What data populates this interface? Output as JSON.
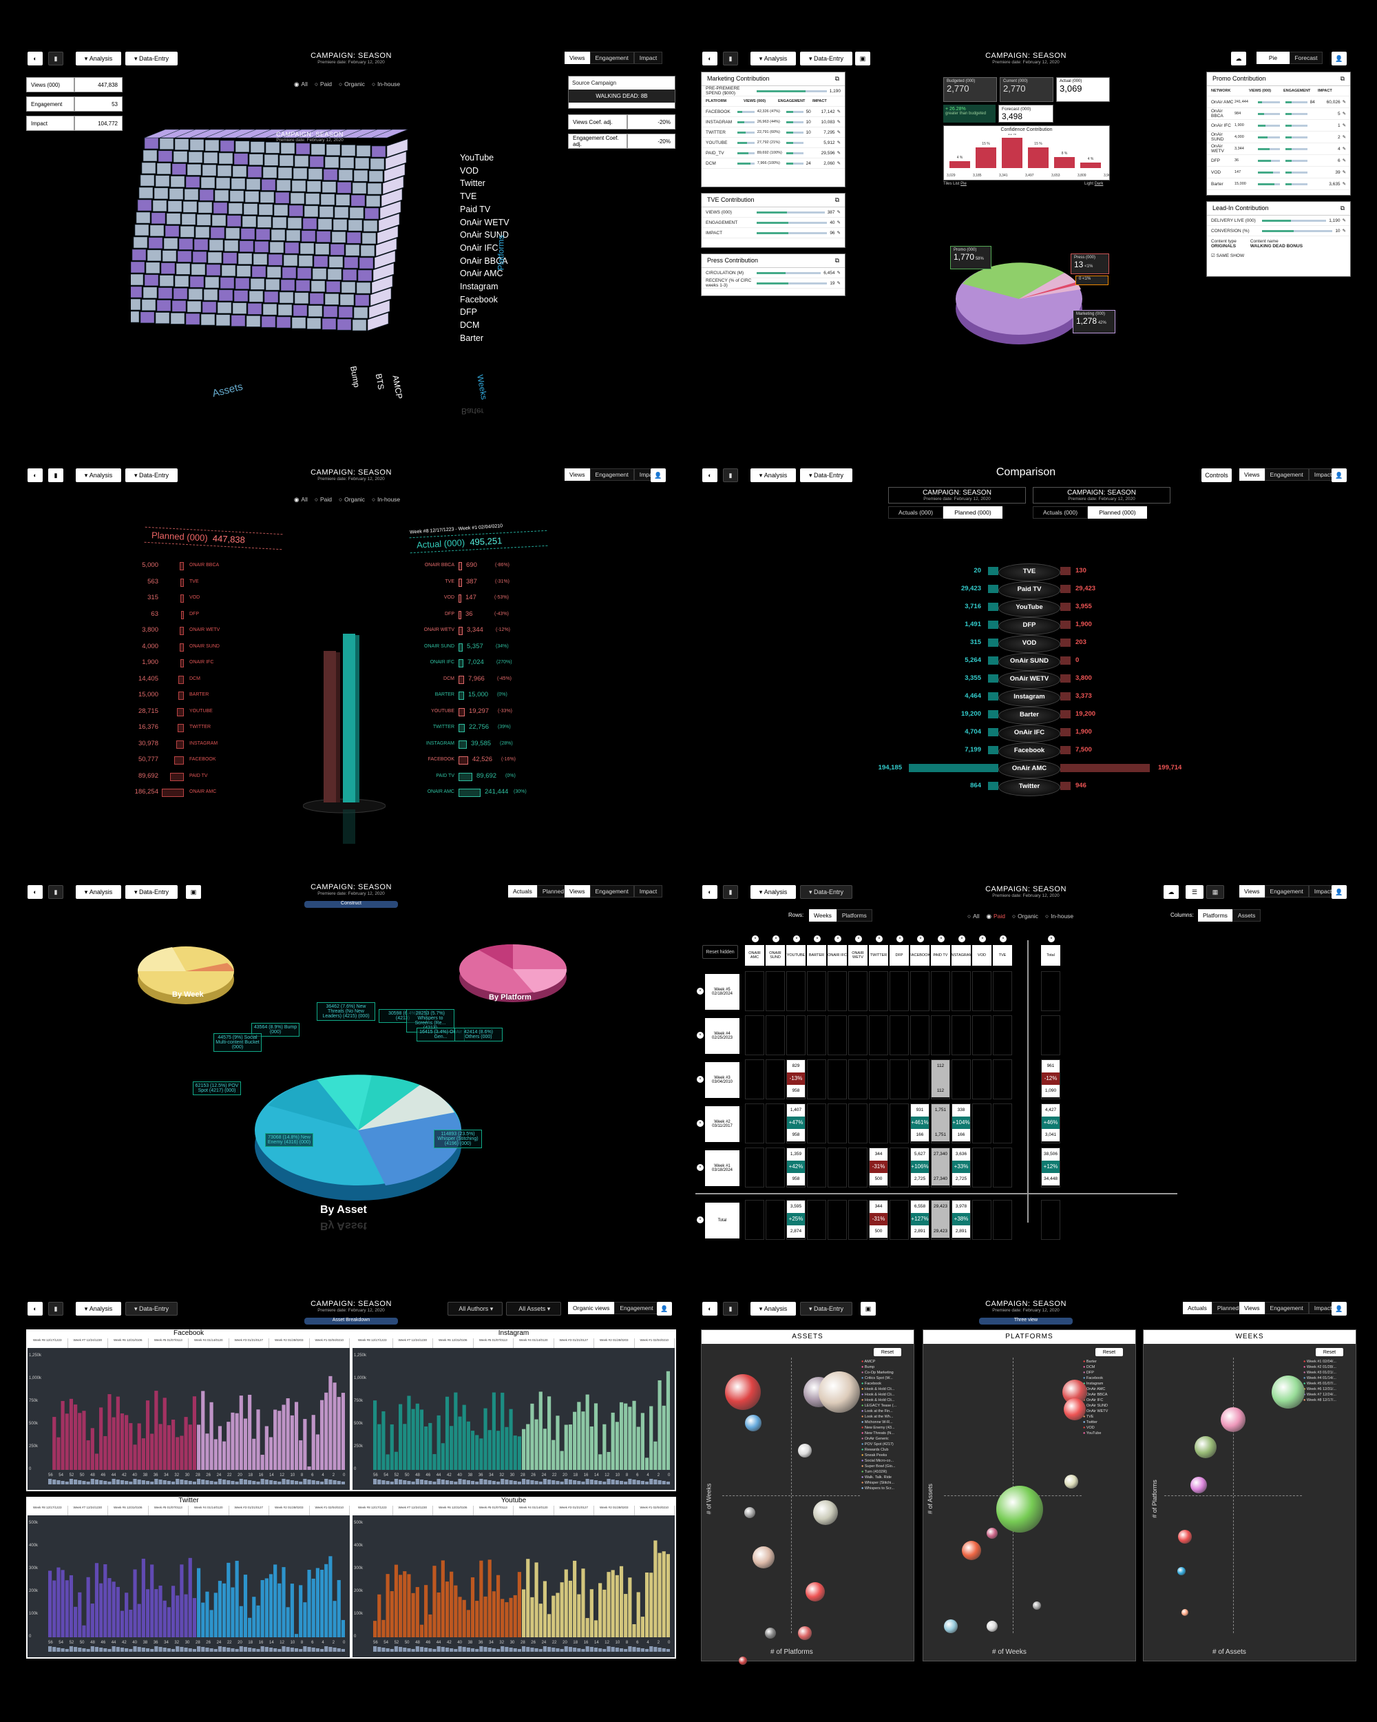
{
  "common": {
    "analysis": "Analysis",
    "data_entry": "Data-Entry",
    "campaign": "CAMPAIGN: SEASON",
    "premiere": "Premiere date: February 12, 2020",
    "views": "Views",
    "engagement": "Engagement",
    "impact": "Impact",
    "actuals": "Actuals",
    "planned": "Planned",
    "controls": "Controls"
  },
  "p1": {
    "filters": [
      "All",
      "Paid",
      "Organic",
      "In-house"
    ],
    "metrics": [
      {
        "k": "Views (000)",
        "v": "447,838"
      },
      {
        "k": "Engagement",
        "v": "53"
      },
      {
        "k": "Impact",
        "v": "104,772"
      }
    ],
    "source_label": "Source Campaign",
    "source_value": "WALKING DEAD: 8B",
    "coefs": [
      {
        "k": "Views Coef. adj.",
        "v": "-20%"
      },
      {
        "k": "Engagement Coef. adj.",
        "v": "-20%"
      }
    ],
    "platforms": [
      "YouTube",
      "VOD",
      "Twitter",
      "TVE",
      "Paid TV",
      "OnAir WETV",
      "OnAir SUND",
      "OnAir IFC",
      "OnAir BBCA",
      "OnAir AMC",
      "Instagram",
      "Facebook",
      "DFP",
      "DCM",
      "Barter"
    ],
    "axis_platforms": "Platforms",
    "axis_assets": "Assets",
    "axis_weeks": "Weeks",
    "bump": "Bump",
    "bts": "BTS",
    "amcp": "AMCP",
    "mirror": "Barter"
  },
  "p2": {
    "tabs": [
      "Pie",
      "Forecast"
    ],
    "marketing": {
      "title": "Marketing Contribution",
      "pre": "PRE-PREMIERE SPEND ($000)",
      "pre_v": "1,190",
      "cols": [
        "PLATFORM",
        "VIEWS (000)",
        "ENGAGEMENT",
        "IMPACT"
      ],
      "rows": [
        [
          "FACEBOOK",
          "42,326 (47%)",
          "50",
          "17,142"
        ],
        [
          "INSTAGRAM",
          "26,963 (44%)",
          "10",
          "10,083"
        ],
        [
          "TWITTER",
          "22,791 (60%)",
          "10",
          "7,295"
        ],
        [
          "YOUTUBE",
          "27,792 (21%)",
          "",
          "5,912"
        ],
        [
          "PAID_TV",
          "89,692 (100%)",
          "",
          "29,596"
        ],
        [
          "DCM",
          "7,966 (100%)",
          "24",
          "2,060"
        ]
      ]
    },
    "tve": {
      "title": "TVE Contribution",
      "rows": [
        [
          "VIEWS (000)",
          "387"
        ],
        [
          "ENGAGEMENT",
          "40"
        ],
        [
          "IMPACT",
          "96"
        ]
      ]
    },
    "press": {
      "title": "Press Contribution",
      "rows": [
        [
          "CIRCULATION (M)",
          "6,454"
        ],
        [
          "RECENCY (% of CIRC weeks 1-3)",
          "19"
        ]
      ]
    },
    "summary": [
      {
        "k": "Budgeted (000)",
        "v": "2,770"
      },
      {
        "k": "Current (000)",
        "v": "2,770"
      },
      {
        "k": "Actual (000)",
        "v": "3,069"
      }
    ],
    "delta": "+ 26.28%",
    "delta_sub": "greater than budgeted",
    "forecast_k": "Forecast (000)",
    "forecast_v": "3,498",
    "confidence": {
      "title": "Confidence Contribution",
      "pct": [
        "4 %",
        "15 %",
        "21 %",
        "15 %",
        "8 %",
        "4 %"
      ],
      "vals": [
        "3,029",
        "3,185",
        "3,341",
        "3,497",
        "3,653",
        "3,809",
        "3,965"
      ],
      "left": [
        "Tiles",
        "List",
        "Pie"
      ],
      "right": [
        "Light",
        "Dark"
      ]
    },
    "pie": [
      {
        "name": "Promo (000)",
        "value": "1,770",
        "pct": "58%"
      },
      {
        "name": "Press (000)",
        "value": "13",
        "pct": "<1%"
      },
      {
        "name": "Marketing (000)",
        "value": "1,278",
        "pct": "42%"
      },
      {
        "name": "",
        "value": "0",
        "pct": "<1%"
      }
    ],
    "promo": {
      "title": "Promo Contribution",
      "cols": [
        "NETWORK",
        "VIEWS (000)",
        "ENGAGEMENT",
        "IMPACT"
      ],
      "rows": [
        [
          "OnAir AMC",
          "241,444",
          "84",
          "60,026"
        ],
        [
          "OnAir BBCA",
          "984",
          "",
          "5"
        ],
        [
          "OnAir IFC",
          "1,900",
          "",
          "1"
        ],
        [
          "OnAir SUND",
          "4,000",
          "",
          "2"
        ],
        [
          "OnAir WETV",
          "3,344",
          "",
          "4"
        ],
        [
          "DFP",
          "36",
          "",
          "6"
        ],
        [
          "VOD",
          "147",
          "",
          "39"
        ],
        [
          "Barter",
          "15,000",
          "",
          "3,635"
        ]
      ]
    },
    "leadin": {
      "title": "Lead-In Contribution",
      "rows": [
        [
          "DELIVERY LIVE (000)",
          "1,190"
        ],
        [
          "CONVERSION (%)",
          "10"
        ]
      ],
      "ctype_k": "Content type",
      "ctype": "ORIGINALS",
      "cname_k": "Content name",
      "cname": "WALKING DEAD BONUS",
      "check": "SAME SHOW"
    }
  },
  "p3": {
    "filters": [
      "All",
      "Paid",
      "Organic",
      "In-house"
    ],
    "planned_label": "Planned (000)",
    "planned_total": "447,838",
    "actual_label": "Actual (000)",
    "actual_total": "495,251",
    "weeks": "Week #8 12/17/1223 - Week #1 02/04/0210",
    "left": [
      [
        "5,000",
        "ONAIR BBCA"
      ],
      [
        "563",
        "TVE"
      ],
      [
        "315",
        "VOD"
      ],
      [
        "63",
        "DFP"
      ],
      [
        "3,800",
        "ONAIR WETV"
      ],
      [
        "4,000",
        "ONAIR SUND"
      ],
      [
        "1,900",
        "ONAIR IFC"
      ],
      [
        "14,405",
        "DCM"
      ],
      [
        "15,000",
        "BARTER"
      ],
      [
        "28,715",
        "YOUTUBE"
      ],
      [
        "16,376",
        "TWITTER"
      ],
      [
        "30,978",
        "INSTAGRAM"
      ],
      [
        "50,777",
        "FACEBOOK"
      ],
      [
        "89,692",
        "PAID TV"
      ],
      [
        "186,254",
        "ONAIR AMC"
      ]
    ],
    "right": [
      [
        "ONAIR BBCA",
        "690",
        "(-86%)",
        "r"
      ],
      [
        "TVE",
        "387",
        "(-31%)",
        "r"
      ],
      [
        "VOD",
        "147",
        "(-53%)",
        "r"
      ],
      [
        "DFP",
        "36",
        "(-43%)",
        "r"
      ],
      [
        "ONAIR WETV",
        "3,344",
        "(-12%)",
        "r"
      ],
      [
        "ONAIR SUND",
        "5,357",
        "(34%)",
        "g"
      ],
      [
        "ONAIR IFC",
        "7,024",
        "(270%)",
        "g"
      ],
      [
        "DCM",
        "7,966",
        "(-45%)",
        "r"
      ],
      [
        "BARTER",
        "15,000",
        "(0%)",
        "g"
      ],
      [
        "YOUTUBE",
        "19,297",
        "(-33%)",
        "r"
      ],
      [
        "TWITTER",
        "22,756",
        "(39%)",
        "g"
      ],
      [
        "INSTAGRAM",
        "39,585",
        "(28%)",
        "g"
      ],
      [
        "FACEBOOK",
        "42,526",
        "(-16%)",
        "r"
      ],
      [
        "PAID TV",
        "89,692",
        "(0%)",
        "g"
      ],
      [
        "ONAIR AMC",
        "241,444",
        "(30%)",
        "g"
      ]
    ]
  },
  "p4": {
    "title": "Comparison",
    "left_tabs": [
      "Actuals (000)",
      "Planned (000)"
    ],
    "right_tabs": [
      "Actuals (000)",
      "Planned (000)"
    ],
    "rows": [
      [
        "20",
        "TVE",
        "130"
      ],
      [
        "29,423",
        "Paid TV",
        "29,423"
      ],
      [
        "3,716",
        "YouTube",
        "3,955"
      ],
      [
        "1,491",
        "DFP",
        "1,900"
      ],
      [
        "315",
        "VOD",
        "203"
      ],
      [
        "5,264",
        "OnAir SUND",
        "0"
      ],
      [
        "3,355",
        "OnAir WETV",
        "3,800"
      ],
      [
        "4,464",
        "Instagram",
        "3,373"
      ],
      [
        "19,200",
        "Barter",
        "19,200"
      ],
      [
        "4,704",
        "OnAir IFC",
        "1,900"
      ],
      [
        "7,199",
        "Facebook",
        "7,500"
      ],
      [
        "194,185",
        "OnAir AMC",
        "199,714"
      ],
      [
        "864",
        "Twitter",
        "946"
      ]
    ]
  },
  "p5": {
    "badge": "Construct",
    "by_week": "By Week",
    "by_platform": "By Platform",
    "by_asset": "By Asset",
    "labels": [
      "36462 (7.6%) New Threats (No New Leaders) (4215) (000)",
      "30598 (6.4%) (4213)",
      "28253 (5.7%) Whispers to Screens (Re... (4213)",
      "16415 (3.4%) OnAir Gen...",
      "42414 (8.6%) Others (000)",
      "43564 (8.9%) Bump (000)",
      "44575 (9%) Social Multi-content Bucket (000)",
      "62153 (12.5%) POV Spot (4217) (000)",
      "73068 (14.8%) New Enemy (4316) (000)",
      "114893 (23.5%) Whisper (Stitching) (4196) (000)"
    ]
  },
  "p6": {
    "rows_label": "Rows:",
    "row_tabs": [
      "Weeks",
      "Platforms"
    ],
    "filters": [
      "All",
      "Paid",
      "Organic",
      "In-house"
    ],
    "cols_label": "Columns:",
    "col_tabs": [
      "Platforms",
      "Assets"
    ],
    "reset": "Reset hidden",
    "columns": [
      "ONAIR AMC",
      "ONAIR SUND",
      "YOUTUBE",
      "BARTER",
      "ONAIR IFC",
      "ONAIR WETV",
      "TWITTER",
      "DFP",
      "FACEBOOK",
      "PAID TV",
      "INSTAGRAM",
      "VOD",
      "TVE",
      "Total"
    ],
    "weeks": [
      "Week #5 02/18/2024",
      "Week #4 02/25/2023",
      "Week #3 03/04/2010",
      "Week #2 03/11/2017",
      "Week #1 03/18/2024",
      "Total"
    ],
    "cells": [
      {
        "r": 2,
        "c": 2,
        "a": "829",
        "d": "-13%",
        "p": "958",
        "t": "r"
      },
      {
        "r": 2,
        "c": 9,
        "a": "112",
        "d": "",
        "p": "112",
        "t": "w"
      },
      {
        "r": 2,
        "c": 13,
        "a": "961",
        "d": "-12%",
        "p": "1,090",
        "t": "r"
      },
      {
        "r": 3,
        "c": 2,
        "a": "1,407",
        "d": "+47%",
        "p": "958",
        "t": "g"
      },
      {
        "r": 3,
        "c": 8,
        "a": "931",
        "d": "+461%",
        "p": "166",
        "t": "g"
      },
      {
        "r": 3,
        "c": 9,
        "a": "1,751",
        "d": "",
        "p": "1,751",
        "t": "w"
      },
      {
        "r": 3,
        "c": 10,
        "a": "338",
        "d": "+104%",
        "p": "166",
        "t": "g"
      },
      {
        "r": 3,
        "c": 13,
        "a": "4,427",
        "d": "+46%",
        "p": "3,041",
        "t": "g"
      },
      {
        "r": 4,
        "c": 2,
        "a": "1,359",
        "d": "+42%",
        "p": "958",
        "t": "g"
      },
      {
        "r": 4,
        "c": 6,
        "a": "344",
        "d": "-31%",
        "p": "500",
        "t": "r"
      },
      {
        "r": 4,
        "c": 8,
        "a": "5,627",
        "d": "+106%",
        "p": "2,725",
        "t": "g"
      },
      {
        "r": 4,
        "c": 9,
        "a": "27,340",
        "d": "",
        "p": "27,340",
        "t": "w"
      },
      {
        "r": 4,
        "c": 10,
        "a": "3,636",
        "d": "+33%",
        "p": "2,725",
        "t": "g"
      },
      {
        "r": 4,
        "c": 13,
        "a": "38,506",
        "d": "+12%",
        "p": "34,448",
        "t": "g"
      },
      {
        "r": 5,
        "c": 2,
        "a": "3,595",
        "d": "+25%",
        "p": "2,874",
        "t": "g"
      },
      {
        "r": 5,
        "c": 6,
        "a": "344",
        "d": "-31%",
        "p": "500",
        "t": "r"
      },
      {
        "r": 5,
        "c": 8,
        "a": "6,558",
        "d": "+127%",
        "p": "2,891",
        "t": "g"
      },
      {
        "r": 5,
        "c": 9,
        "a": "29,423",
        "d": "",
        "p": "29,423",
        "t": "w"
      },
      {
        "r": 5,
        "c": 10,
        "a": "3,978",
        "d": "+38%",
        "p": "2,891",
        "t": "g"
      }
    ]
  },
  "p7": {
    "badge": "Asset Breakdown",
    "authors": "All Authors",
    "assets": "All Assets",
    "organic": "Organic views",
    "engagement": "Engagement",
    "weeks": [
      "Week #8 12/17/1223",
      "Week #7 12/24/1230",
      "Week #6 12/31/0106",
      "Week #5 01/07/0113",
      "Week #4 01/14/0120",
      "Week #3 01/21/0127",
      "Week #2 01/28/0203",
      "Week #1 02/04/0210"
    ],
    "charts": [
      {
        "title": "Facebook",
        "ticks": [
          "1,250k",
          "1,000k",
          "750k",
          "500k",
          "250k",
          "0"
        ],
        "c1": "#b8336a",
        "c2": "#d9a6e0",
        "tall": true
      },
      {
        "title": "Instagram",
        "ticks": [
          "1,250k",
          "1,000k",
          "750k",
          "500k",
          "250k",
          "0"
        ],
        "c1": "#1a9e8f",
        "c2": "#9fe3b8",
        "tall": true
      },
      {
        "title": "Twitter",
        "ticks": [
          "500k",
          "400k",
          "300k",
          "200k",
          "100k",
          "0"
        ],
        "c1": "#6b4fc9",
        "c2": "#2ea6e6",
        "tall": false
      },
      {
        "title": "Youtube",
        "ticks": [
          "500k",
          "400k",
          "300k",
          "200k",
          "100k",
          "0"
        ],
        "c1": "#d85f1c",
        "c2": "#f1e08a",
        "tall": false
      }
    ],
    "xt": [
      "56",
      "54",
      "52",
      "50",
      "48",
      "46",
      "44",
      "42",
      "40",
      "38",
      "36",
      "34",
      "32",
      "30",
      "28",
      "26",
      "24",
      "22",
      "20",
      "18",
      "16",
      "14",
      "12",
      "10",
      "8",
      "6",
      "4",
      "2",
      "0"
    ]
  },
  "p8": {
    "badge": "Three view",
    "reset": "Reset",
    "assets": {
      "title": "ASSETS",
      "xlabel": "# of Platforms",
      "ylabel": "# of Weeks",
      "legend": [
        "AMCP",
        "Bump",
        "Co-Op Marketing",
        "Critics Spot (W...",
        "Facebook",
        "Hook & Hold Cli...",
        "Hook & Hold Cli...",
        "Hook & Hold Cli...",
        "LEGACY Tease (...",
        "Look at the Fin...",
        "Look at the Wh...",
        "Michonne W-R...",
        "New Enemy (43...",
        "New Threats (N...",
        "OnAir Generic",
        "POV Spot (4217)",
        "Rewards Club",
        "Sneak Peeks",
        "Social Micro-co...",
        "Super Bowl (Gio...",
        "Turn (4102R)",
        "Walk. Talk. Ride",
        "Whisper (Stitchi...",
        "Whispers to Scr..."
      ]
    },
    "platforms": {
      "title": "PLATFORMS",
      "xlabel": "# of Weeks",
      "ylabel": "# of Assets",
      "legend": [
        "Barter",
        "DCM",
        "DFP",
        "Facebook",
        "Instagram",
        "OnAir AMC",
        "OnAir BBCA",
        "OnAir IFC",
        "OnAir SUND",
        "OnAir WETV",
        "TVE",
        "Twitter",
        "VOD",
        "YouTube"
      ]
    },
    "weeks": {
      "title": "WEEKS",
      "xlabel": "# of Assets",
      "ylabel": "# of Platforms",
      "legend": [
        "Week #1 02/04/...",
        "Week #2 01/28/...",
        "Week #3 01/21/...",
        "Week #4 01/14/...",
        "Week #5 01/07/...",
        "Week #6 12/31/...",
        "Week #7 12/24/...",
        "Week #8 12/17/..."
      ]
    }
  }
}
